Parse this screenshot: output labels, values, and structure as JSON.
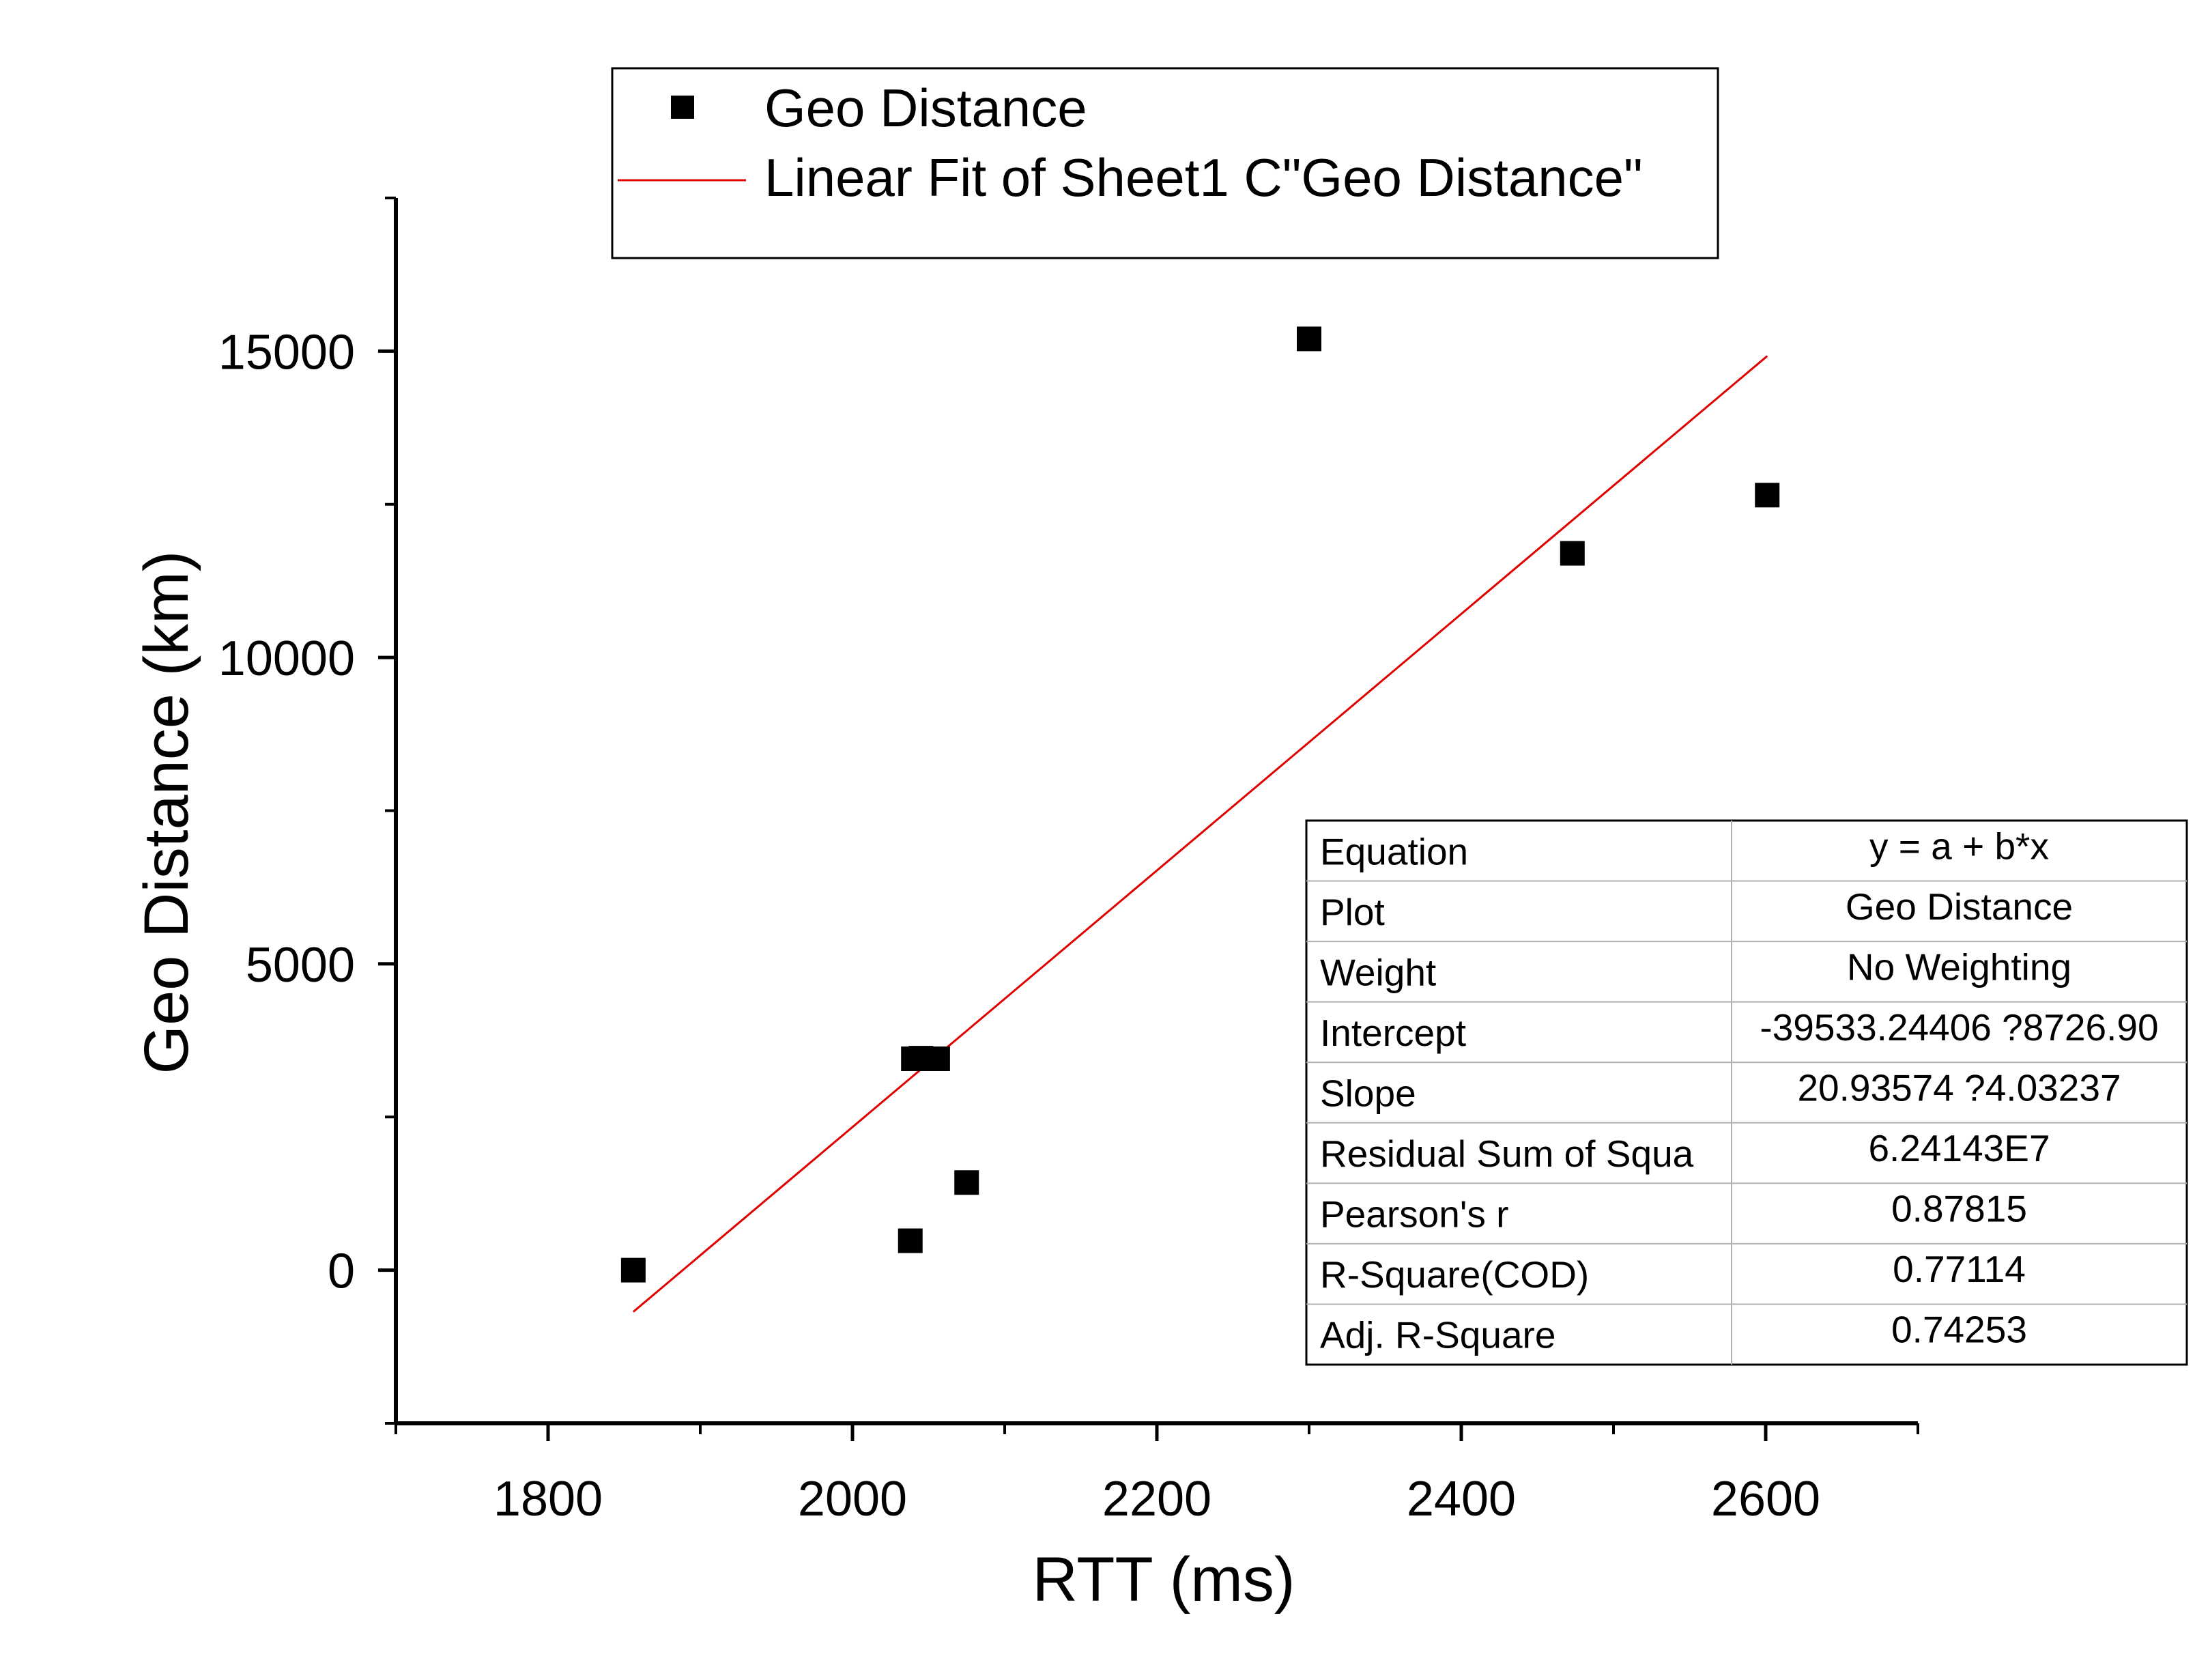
{
  "chart_data": {
    "type": "scatter",
    "xlabel": "RTT (ms)",
    "ylabel": "Geo Distance (km)",
    "xlim": [
      1700,
      2700
    ],
    "ylim": [
      -2500,
      17500
    ],
    "x_ticks": [
      1800,
      2000,
      2200,
      2400,
      2600
    ],
    "y_ticks": [
      0,
      5000,
      10000,
      15000
    ],
    "x_tick_labels": [
      "1800",
      "2000",
      "2200",
      "2400",
      "2600"
    ],
    "y_tick_labels": [
      "0",
      "5000",
      "10000",
      "15000"
    ],
    "x_minor_ticks": [
      1700,
      1900,
      2100,
      2300,
      2500,
      2700
    ],
    "y_minor_ticks": [
      -2500,
      2500,
      7500,
      12500,
      17500
    ],
    "grid": false,
    "legend_position": "top-center",
    "series": [
      {
        "name": "Geo Distance",
        "kind": "scatter",
        "marker": "square",
        "color": "#000000",
        "x": [
          1856,
          2038,
          2040,
          2045,
          2050,
          2056,
          2075,
          2300,
          2473,
          2601
        ],
        "y": [
          0,
          480,
          3450,
          3460,
          3450,
          3450,
          1430,
          15200,
          11700,
          12650
        ]
      },
      {
        "name": "Linear Fit of Sheet1 C\"Geo Distance\"",
        "kind": "line",
        "color": "#e00000",
        "x": [
          1856,
          2601
        ],
        "y": [
          -680,
          14920
        ]
      }
    ],
    "fit_table": {
      "rows": [
        {
          "label": "Equation",
          "value": "y = a + b*x"
        },
        {
          "label": "Plot",
          "value": "Geo Distance"
        },
        {
          "label": "Weight",
          "value": "No Weighting"
        },
        {
          "label": "Intercept",
          "value": "-39533.24406 ?8726.90"
        },
        {
          "label": "Slope",
          "value": "20.93574 ?4.03237"
        },
        {
          "label": "Residual Sum of Squa",
          "value": "6.24143E7"
        },
        {
          "label": "Pearson's r",
          "value": "0.87815"
        },
        {
          "label": "R-Square(COD)",
          "value": "0.77114"
        },
        {
          "label": "Adj. R-Square",
          "value": "0.74253"
        }
      ]
    }
  }
}
